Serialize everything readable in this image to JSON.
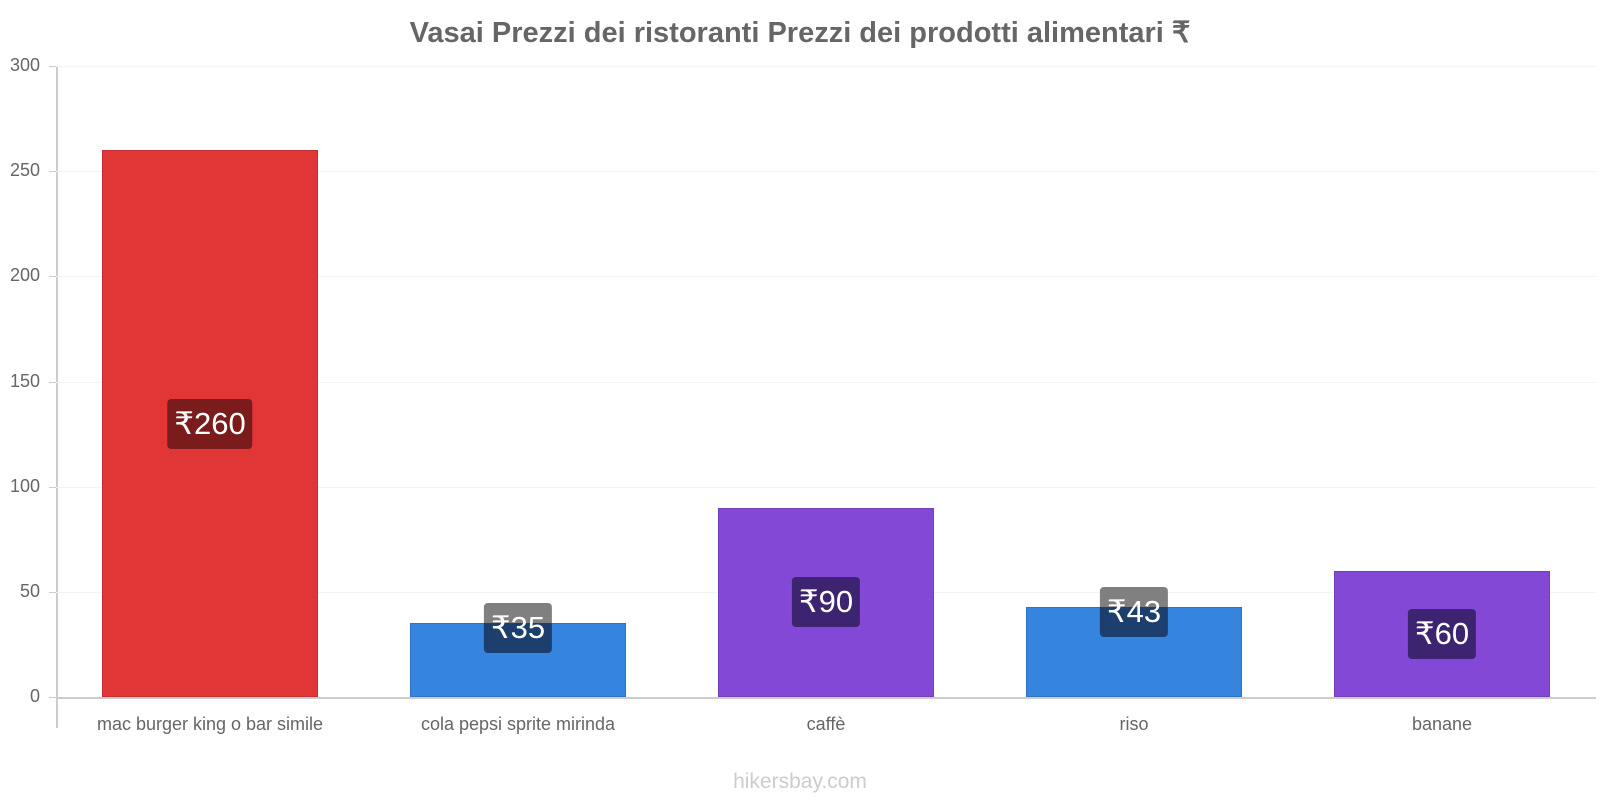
{
  "chart_data": {
    "type": "bar",
    "title": "Vasai Prezzi dei ristoranti Prezzi dei prodotti alimentari ₹",
    "xlabel": "",
    "ylabel": "",
    "ylim": [
      0,
      300
    ],
    "yticks": [
      0,
      50,
      100,
      150,
      200,
      250,
      300
    ],
    "grid": true,
    "legend": "none",
    "categories": [
      "mac burger king o bar simile",
      "cola pepsi sprite mirinda",
      "caffè",
      "riso",
      "banane"
    ],
    "values": [
      260,
      35,
      90,
      43,
      60
    ],
    "data_labels": [
      "₹260",
      "₹35",
      "₹90",
      "₹43",
      "₹60"
    ],
    "bar_colors": [
      "#e03636",
      "#3584dd",
      "#8349d6",
      "#3584dd",
      "#8349d6"
    ],
    "label_bg_colors": [
      "#7a1c1c",
      "#1c3f6e",
      "#3c2470",
      "#1c3f6e",
      "#3c2470"
    ]
  },
  "title": "Vasai Prezzi dei ristoranti Prezzi dei prodotti alimentari ₹",
  "y_axis": {
    "ticks": [
      "0",
      "50",
      "100",
      "150",
      "200",
      "250",
      "300"
    ]
  },
  "bars": [
    {
      "category": "mac burger king o bar simile",
      "value": 260,
      "label": "₹260"
    },
    {
      "category": "cola pepsi sprite mirinda",
      "value": 35,
      "label": "₹35"
    },
    {
      "category": "caffè",
      "value": 90,
      "label": "₹90"
    },
    {
      "category": "riso",
      "value": 43,
      "label": "₹43"
    },
    {
      "category": "banane",
      "value": 60,
      "label": "₹60"
    }
  ],
  "watermark": "hikersbay.com"
}
